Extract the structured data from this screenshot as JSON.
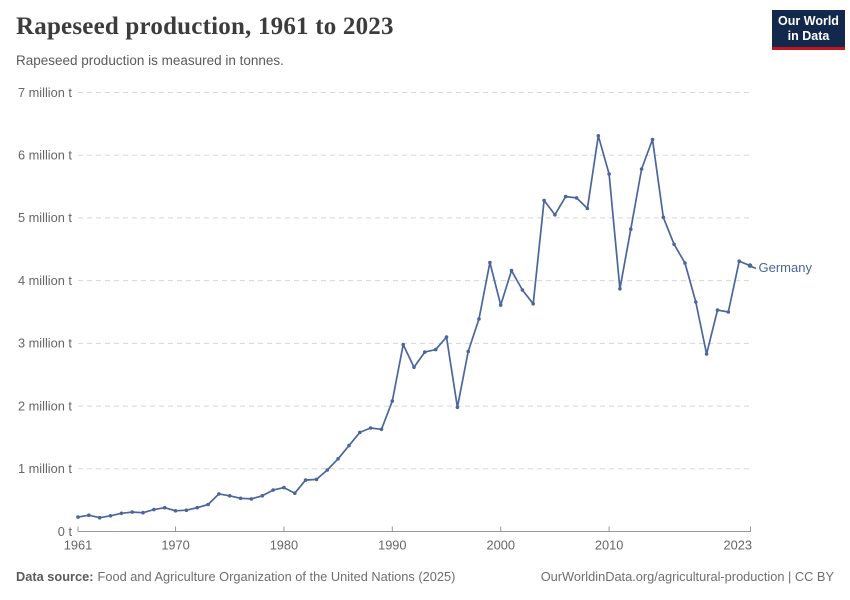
{
  "header": {
    "title": "Rapeseed production, 1961 to 2023",
    "subtitle": "Rapeseed production is measured in tonnes.",
    "logo": {
      "line1": "Our World",
      "line2": "in Data"
    }
  },
  "footer": {
    "source_label": "Data source:",
    "source_text": "Food and Agriculture Organization of the United Nations (2025)",
    "link_text": "OurWorldinData.org/agricultural-production",
    "license_suffix": " | CC BY"
  },
  "colors": {
    "line": "#4a669c",
    "grid": "#d8d8d8",
    "axis": "#999999",
    "tick_label": "#666666",
    "end_label": "#4a669c",
    "logo_bg": "#12294d",
    "logo_red": "#c5161d"
  },
  "chart_data": {
    "type": "line",
    "title": "Rapeseed production, 1961 to 2023",
    "unit_note": "values in million tonnes",
    "grid": true,
    "legend_position": "end-of-line label",
    "xlim": [
      1961,
      2023
    ],
    "ylim": [
      0,
      7
    ],
    "x_ticks": [
      "1961",
      "1970",
      "1980",
      "1990",
      "2000",
      "2010",
      "2023"
    ],
    "y_ticks": [
      {
        "value": 0,
        "label": "0 t"
      },
      {
        "value": 1,
        "label": "1 million t"
      },
      {
        "value": 2,
        "label": "2 million t"
      },
      {
        "value": 3,
        "label": "3 million t"
      },
      {
        "value": 4,
        "label": "4 million t"
      },
      {
        "value": 5,
        "label": "5 million t"
      },
      {
        "value": 6,
        "label": "6 million t"
      },
      {
        "value": 7,
        "label": "7 million t"
      }
    ],
    "x": [
      1961,
      1962,
      1963,
      1964,
      1965,
      1966,
      1967,
      1968,
      1969,
      1970,
      1971,
      1972,
      1973,
      1974,
      1975,
      1976,
      1977,
      1978,
      1979,
      1980,
      1981,
      1982,
      1983,
      1984,
      1985,
      1986,
      1987,
      1988,
      1989,
      1990,
      1991,
      1992,
      1993,
      1994,
      1995,
      1996,
      1997,
      1998,
      1999,
      2000,
      2001,
      2002,
      2003,
      2004,
      2005,
      2006,
      2007,
      2008,
      2009,
      2010,
      2011,
      2012,
      2013,
      2014,
      2015,
      2016,
      2017,
      2018,
      2019,
      2020,
      2021,
      2022,
      2023
    ],
    "series": [
      {
        "name": "Germany",
        "color": "#4a669c",
        "values": [
          0.23,
          0.26,
          0.22,
          0.25,
          0.29,
          0.31,
          0.3,
          0.35,
          0.38,
          0.33,
          0.34,
          0.38,
          0.43,
          0.6,
          0.57,
          0.53,
          0.52,
          0.57,
          0.66,
          0.7,
          0.61,
          0.82,
          0.83,
          0.98,
          1.16,
          1.37,
          1.58,
          1.65,
          1.63,
          2.08,
          2.98,
          2.62,
          2.86,
          2.9,
          3.1,
          1.98,
          2.87,
          3.39,
          4.29,
          3.61,
          4.16,
          3.85,
          3.63,
          5.28,
          5.05,
          5.34,
          5.32,
          5.15,
          6.31,
          5.7,
          3.87,
          4.82,
          5.78,
          6.25,
          5.01,
          4.58,
          4.28,
          3.66,
          2.83,
          3.53,
          3.5,
          4.31,
          4.24
        ]
      }
    ],
    "end_label": "Germany"
  }
}
